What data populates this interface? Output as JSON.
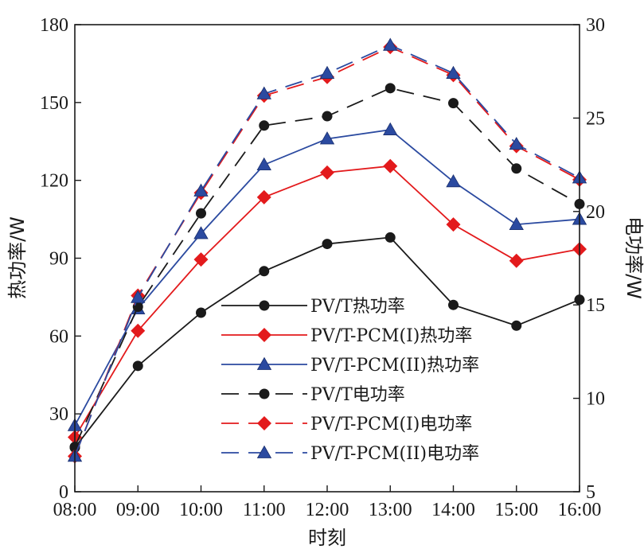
{
  "chart_data": {
    "type": "line",
    "x": [
      "08:00",
      "09:00",
      "10:00",
      "11:00",
      "12:00",
      "13:00",
      "14:00",
      "15:00",
      "16:00"
    ],
    "xlabel": "时刻",
    "ylabel_left": "热功率/W",
    "ylabel_right": "电功率/W",
    "ylim_left": [
      0,
      180
    ],
    "ylim_right": [
      5,
      30
    ],
    "yticks_left": [
      0,
      30,
      60,
      90,
      120,
      150,
      180
    ],
    "yticks_right": [
      5,
      10,
      15,
      20,
      25,
      30
    ],
    "grid": false,
    "legend_position": "center-right",
    "series": [
      {
        "name": "PV/T热功率",
        "axis": "left",
        "color": "#1a1a1a",
        "dash": "solid",
        "marker": "circle",
        "values": [
          17,
          48.5,
          69,
          85,
          95.5,
          98,
          72,
          64,
          74
        ]
      },
      {
        "name": "PV/T-PCM(I)热功率",
        "axis": "left",
        "color": "#e31a1c",
        "dash": "solid",
        "marker": "diamond",
        "values": [
          21,
          62,
          89.5,
          113.5,
          123,
          125.5,
          103,
          89,
          93.5
        ]
      },
      {
        "name": "PV/T-PCM(II)热功率",
        "axis": "left",
        "color": "#2b4aa0",
        "dash": "solid",
        "marker": "triangle",
        "values": [
          25.5,
          70.5,
          99.5,
          126,
          136,
          139.5,
          119.5,
          103,
          105
        ]
      },
      {
        "name": "PV/T电功率",
        "axis": "right",
        "color": "#1a1a1a",
        "dash": "dashed",
        "marker": "circle",
        "values": [
          7.4,
          14.9,
          19.9,
          24.6,
          25.1,
          26.6,
          25.8,
          22.3,
          20.4
        ]
      },
      {
        "name": "PV/T-PCM(I)电功率",
        "axis": "right",
        "color": "#e31a1c",
        "dash": "dashed",
        "marker": "diamond",
        "values": [
          6.9,
          15.5,
          21.0,
          26.2,
          27.2,
          28.8,
          27.3,
          23.5,
          21.7
        ]
      },
      {
        "name": "PV/T-PCM(II)电功率",
        "axis": "right",
        "color": "#2b4aa0",
        "dash": "dashed",
        "marker": "triangle",
        "values": [
          6.9,
          15.4,
          21.1,
          26.3,
          27.4,
          28.9,
          27.4,
          23.6,
          21.8
        ]
      }
    ]
  }
}
